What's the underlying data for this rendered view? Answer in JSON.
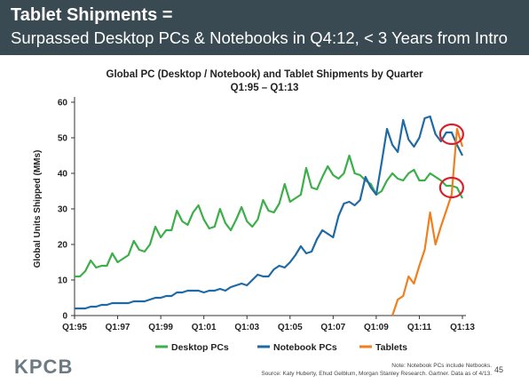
{
  "header": {
    "title": "Tablet Shipments =",
    "subtitle": "Surpassed Desktop PCs & Notebooks in Q4:12, < 3 Years from Intro"
  },
  "footer": {
    "logo": "KPCB",
    "note": "Note: Notebook PCs include Netbooks.",
    "source": "Source: Katy Huberty, Ehud Gelblum, Morgan Stanley Research. Gartner. Data as of 4/13.",
    "page": "45"
  },
  "colors": {
    "desktop": "#3cae4a",
    "notebook": "#1f6aa5",
    "tablets": "#f07f1e",
    "highlight": "#d9202c",
    "header_bg": "#3a4a52"
  },
  "chart_data": {
    "type": "line",
    "title": "Global PC (Desktop / Notebook) and Tablet Shipments by Quarter",
    "subtitle": "Q1:95 – Q1:13",
    "ylabel": "Global Units Shipped (MMs)",
    "xlabel": "",
    "ylim": [
      0,
      60
    ],
    "yticks": [
      0,
      10,
      20,
      30,
      40,
      50,
      60
    ],
    "xtick_labels": [
      "Q1:95",
      "Q1:97",
      "Q1:99",
      "Q1:01",
      "Q1:03",
      "Q1:05",
      "Q1:07",
      "Q1:09",
      "Q1:11",
      "Q1:13"
    ],
    "grid": false,
    "legend": "bottom",
    "x_start": "Q1:95",
    "x_end": "Q1:13",
    "series": [
      {
        "name": "Desktop PCs",
        "values": [
          11,
          11,
          12.5,
          15.5,
          13.5,
          14,
          14,
          17.5,
          15,
          16,
          17,
          21,
          18.5,
          18,
          20,
          25,
          22,
          24,
          24,
          29.5,
          26.5,
          25.5,
          29,
          31,
          27,
          24.5,
          25,
          30,
          26,
          24,
          27,
          30.5,
          26.5,
          25,
          27,
          32.5,
          29.5,
          29,
          31.5,
          37,
          32,
          33,
          34,
          41.5,
          36,
          35.5,
          39,
          42,
          39.5,
          38.5,
          40,
          45,
          40,
          39.5,
          38,
          37,
          34,
          35,
          38,
          40,
          38.5,
          38,
          40,
          41,
          38,
          38,
          40,
          39,
          38,
          36.5,
          36.5,
          36,
          33
        ]
      },
      {
        "name": "Notebook PCs",
        "values": [
          2,
          2,
          2,
          2.5,
          2.5,
          3,
          3,
          3.5,
          3.5,
          3.5,
          3.5,
          4,
          4,
          4,
          4.5,
          5,
          5,
          5.5,
          5.5,
          6.5,
          6.5,
          7,
          7,
          7,
          6.5,
          7,
          7,
          7.5,
          7,
          8,
          8.5,
          9,
          8.5,
          10,
          11.5,
          11,
          11,
          13,
          14,
          13.5,
          15,
          17,
          19.5,
          17.5,
          18,
          21.5,
          24,
          23,
          22,
          28,
          31.5,
          32,
          31,
          32.5,
          39,
          36,
          34,
          43,
          52.5,
          48,
          46,
          55,
          49.5,
          47.5,
          50,
          55.5,
          56,
          51,
          49,
          51.5,
          51.5,
          48,
          45
        ]
      },
      {
        "name": "Tablets",
        "values": [
          null,
          null,
          null,
          null,
          null,
          null,
          null,
          null,
          null,
          null,
          null,
          null,
          null,
          null,
          null,
          null,
          null,
          null,
          null,
          null,
          null,
          null,
          null,
          null,
          null,
          null,
          null,
          null,
          null,
          null,
          null,
          null,
          null,
          null,
          null,
          null,
          null,
          null,
          null,
          null,
          null,
          null,
          null,
          null,
          null,
          null,
          null,
          null,
          null,
          null,
          null,
          null,
          null,
          null,
          null,
          null,
          null,
          null,
          null,
          0,
          4.5,
          5.5,
          11,
          9,
          14,
          18.5,
          29,
          20,
          25,
          29.5,
          34,
          52.5,
          47.5
        ]
      }
    ],
    "annotations": [
      {
        "type": "circle",
        "x_index": 70,
        "y": 51,
        "color": "#d9202c"
      },
      {
        "type": "circle",
        "x_index": 70,
        "y": 36,
        "color": "#d9202c"
      }
    ]
  }
}
